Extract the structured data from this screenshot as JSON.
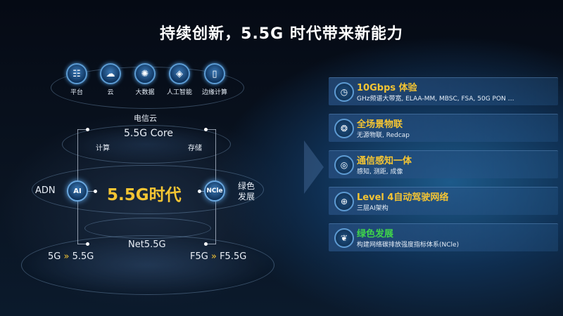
{
  "title": "持续创新，5.5G 时代带来新能力",
  "top_icons": [
    {
      "label": "平台",
      "icon": "platform-icon"
    },
    {
      "label": "云",
      "icon": "cloud-icon"
    },
    {
      "label": "大数据",
      "icon": "big-data-icon"
    },
    {
      "label": "人工智能",
      "icon": "ai-chip-icon"
    },
    {
      "label": "边缘计算",
      "icon": "edge-computing-icon"
    }
  ],
  "diagram": {
    "telecom_cloud": "电信云",
    "core": "5.5G Core",
    "compute": "计算",
    "storage": "存储",
    "adn": "ADN",
    "ai_badge": "AI",
    "center": "5.5G时代",
    "ncle_badge": "NCle",
    "green": "绿色发展",
    "net": "Net5.5G",
    "left_from": "5G",
    "left_to": "5.5G",
    "right_from": "F5G",
    "right_to": "F5.5G",
    "arrow": "»"
  },
  "capabilities": [
    {
      "title": "10Gbps 体验",
      "desc": "GHz频谱大带宽, ELAA-MM, MBSC, FSA, 50G PON …",
      "icon": "timer-icon",
      "color": "#f5c533"
    },
    {
      "title": "全场景物联",
      "desc": "无源物联, Redcap",
      "icon": "iot-icon",
      "color": "#f5c533"
    },
    {
      "title": "通信感知一体",
      "desc": "感知, 测距, 成像",
      "icon": "sensing-icon",
      "color": "#f5c533"
    },
    {
      "title": "Level 4自动驾驶网络",
      "desc": "三层AI架构",
      "icon": "network-globe-icon",
      "color": "#f5c533"
    },
    {
      "title": "绿色发展",
      "desc": "构建网络碳排放强度指标体系(NCle)",
      "icon": "leaf-icon",
      "color": "#3fd44a"
    }
  ]
}
